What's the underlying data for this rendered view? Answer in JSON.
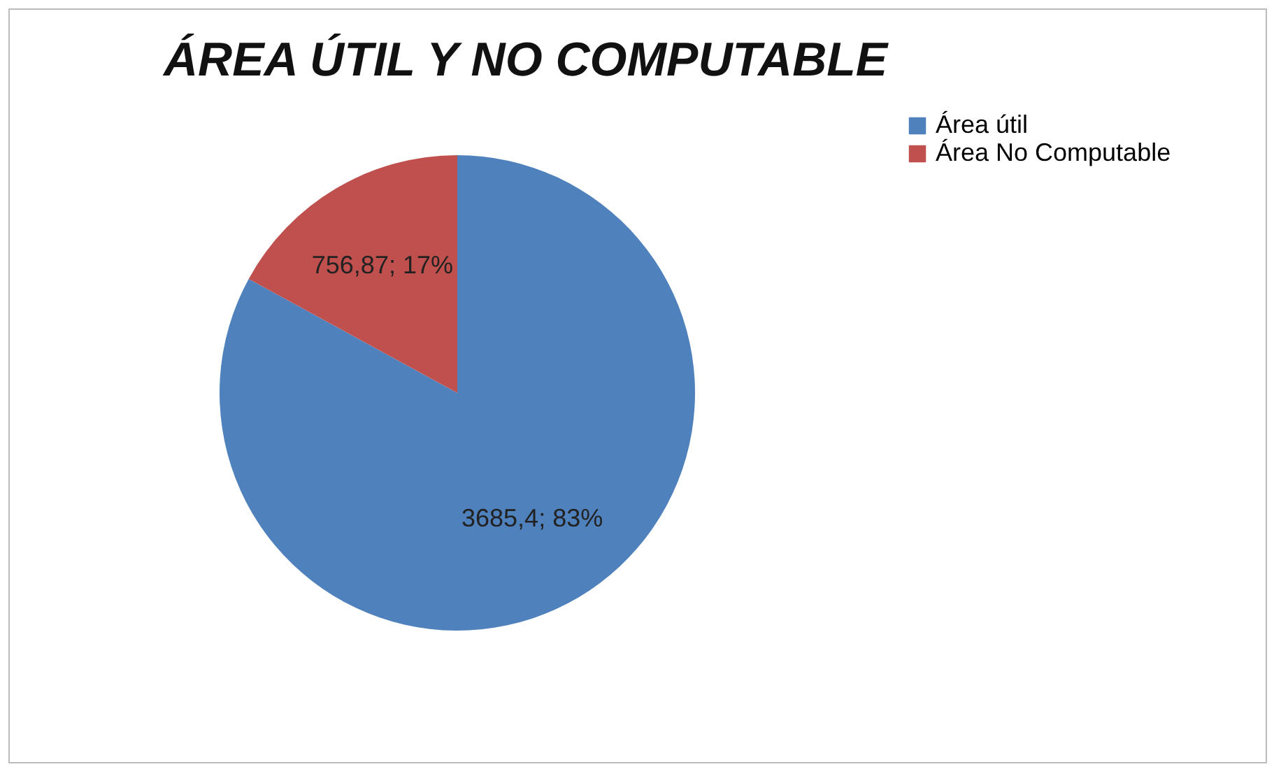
{
  "chart_data": {
    "type": "pie",
    "title": "ÁREA ÚTIL Y NO COMPUTABLE",
    "categories": [
      "Área útil",
      "Área No Computable"
    ],
    "values": [
      3685.4,
      756.87
    ],
    "colors": [
      "#4f81bd",
      "#c0504d"
    ],
    "value_labels": [
      "3685,4; 83%",
      "756,87; 17%"
    ],
    "legend": "right"
  }
}
